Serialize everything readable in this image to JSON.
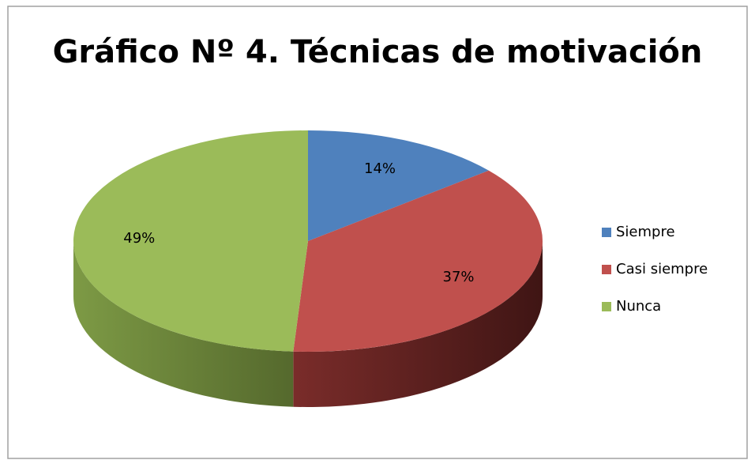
{
  "chart_data": {
    "type": "pie",
    "title": "Gráfico Nº 4. Técnicas de motivación",
    "categories": [
      "Siempre",
      "Casi siempre",
      "Nunca"
    ],
    "values": [
      14,
      37,
      49
    ],
    "value_labels": [
      "14%",
      "37%",
      "49%"
    ],
    "colors": [
      "#4f81bd",
      "#c0504d",
      "#9bbb59"
    ],
    "legend": "right"
  }
}
